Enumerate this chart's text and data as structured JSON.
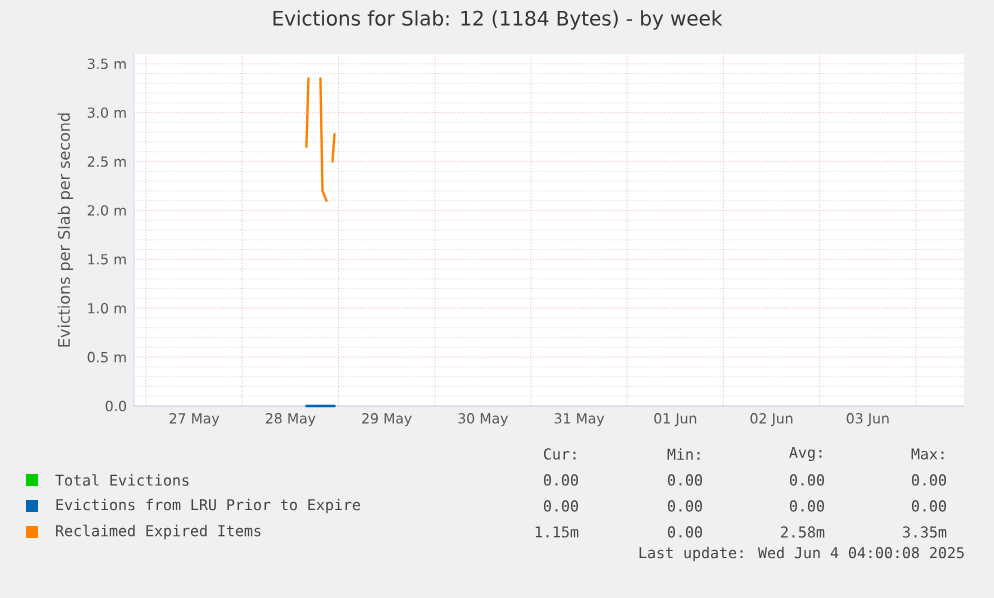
{
  "chart_data": {
    "type": "line",
    "title": "Evictions for Slab: 12 (1184 Bytes) - by week",
    "ylabel": "Evictions per Slab per second",
    "x": [
      "2025-05-28T16:00",
      "2025-05-28T16:30",
      "2025-05-28T17:00",
      "2025-05-28T19:00",
      "2025-05-28T19:30",
      "2025-05-28T20:00",
      "2025-05-28T21:00",
      "2025-05-28T22:00",
      "2025-05-28T22:30",
      "2025-05-28T23:00"
    ],
    "series": [
      {
        "name": "Total Evictions",
        "color": "#00cc00",
        "values": [
          null,
          null,
          null,
          null,
          null,
          null,
          null,
          null,
          null,
          null
        ]
      },
      {
        "name": "Evictions from LRU Prior to Expire",
        "color": "#0066b3",
        "values": [
          0,
          0,
          0,
          0,
          0,
          0,
          0,
          0,
          0,
          0
        ]
      },
      {
        "name": "Reclaimed Expired Items",
        "color": "#ff8000",
        "values": [
          2.65,
          3.35,
          null,
          null,
          3.35,
          2.2,
          2.1,
          null,
          2.5,
          2.78
        ]
      }
    ],
    "xlim": [
      "2025-05-26T21:00",
      "2025-06-04T12:00"
    ],
    "xticks": [
      {
        "value": "2025-05-27T00:00",
        "label": null
      },
      {
        "value": "2025-05-28T00:00",
        "label": null
      },
      {
        "value": "2025-05-29T00:00",
        "label": null
      },
      {
        "value": "2025-05-30T00:00",
        "label": null
      },
      {
        "value": "2025-05-31T00:00",
        "label": null
      },
      {
        "value": "2025-06-01T00:00",
        "label": null
      },
      {
        "value": "2025-06-02T00:00",
        "label": null
      },
      {
        "value": "2025-06-03T00:00",
        "label": null
      },
      {
        "value": "2025-06-04T00:00",
        "label": null
      },
      {
        "value": "2025-05-27T12:00",
        "label": "27 May"
      },
      {
        "value": "2025-05-28T12:00",
        "label": "28 May"
      },
      {
        "value": "2025-05-29T12:00",
        "label": "29 May"
      },
      {
        "value": "2025-05-30T12:00",
        "label": "30 May"
      },
      {
        "value": "2025-05-31T12:00",
        "label": "31 May"
      },
      {
        "value": "2025-06-01T12:00",
        "label": "01 Jun"
      },
      {
        "value": "2025-06-02T12:00",
        "label": "02 Jun"
      },
      {
        "value": "2025-06-03T12:00",
        "label": "03 Jun"
      }
    ],
    "ylim": [
      0,
      3.6
    ],
    "yticks": [
      {
        "value": 0,
        "label": "0.0"
      },
      {
        "value": 0.5,
        "label": "0.5 m"
      },
      {
        "value": 1.0,
        "label": "1.0 m"
      },
      {
        "value": 1.5,
        "label": "1.5 m"
      },
      {
        "value": 2.0,
        "label": "2.0 m"
      },
      {
        "value": 2.5,
        "label": "2.5 m"
      },
      {
        "value": 3.0,
        "label": "3.0 m"
      },
      {
        "value": 3.5,
        "label": "3.5 m"
      }
    ],
    "grid": true,
    "legend": "bottom",
    "annotations": [
      "Cur:",
      "Min:",
      "Avg:",
      "Max:",
      "0.00",
      "0.00",
      "0.00",
      "0.00",
      "0.00",
      "0.00",
      "0.00",
      "0.00",
      "1.15m",
      "0.00",
      "2.58m",
      "3.35m",
      "Last update: Wed Jun  4 04:00:08 2025"
    ]
  }
}
